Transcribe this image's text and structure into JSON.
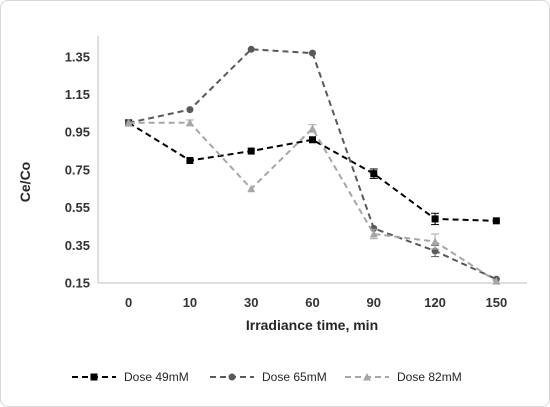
{
  "chart_data": {
    "type": "line",
    "title": "",
    "xlabel": "Irradiance time, min",
    "ylabel": "Ce/Co",
    "categories": [
      "0",
      "10",
      "30",
      "60",
      "90",
      "120",
      "150"
    ],
    "ylim": [
      0.15,
      1.45
    ],
    "yticks": [
      0.15,
      0.35,
      0.55,
      0.75,
      0.95,
      1.15,
      1.35
    ],
    "ytick_labels": [
      "0.15",
      "0.35",
      "0.55",
      "0.75",
      "0.95",
      "1.15",
      "1.35"
    ],
    "grid": false,
    "legend_position": "bottom",
    "series": [
      {
        "name": "Dose 49mM",
        "color": "#000000",
        "marker": "square",
        "values": [
          1.0,
          0.8,
          0.85,
          0.91,
          0.73,
          0.49,
          0.48
        ],
        "errors": [
          0.0,
          0.0,
          0.0,
          0.0,
          0.025,
          0.03,
          0.0
        ]
      },
      {
        "name": "Dose 65mM",
        "color": "#595959",
        "marker": "circle",
        "values": [
          1.0,
          1.07,
          1.39,
          1.37,
          0.44,
          0.32,
          0.17
        ],
        "errors": [
          0.0,
          0.0,
          0.0,
          0.0,
          0.0,
          0.03,
          0.0
        ]
      },
      {
        "name": "Dose 82mM",
        "color": "#a6a6a6",
        "marker": "triangle",
        "values": [
          1.0,
          1.0,
          0.65,
          0.97,
          0.41,
          0.37,
          0.16
        ],
        "errors": [
          0.0,
          0.015,
          0.0,
          0.02,
          0.025,
          0.04,
          0.0
        ]
      }
    ]
  }
}
